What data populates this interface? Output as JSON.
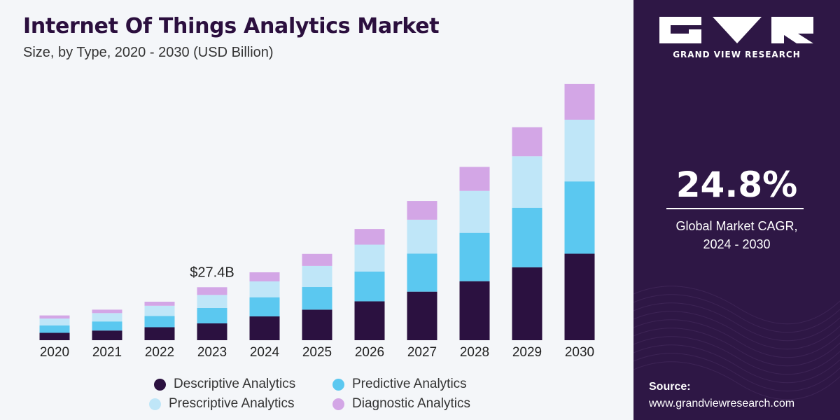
{
  "header": {
    "title": "Internet Of Things Analytics Market",
    "subtitle": "Size, by Type, 2020 - 2030 (USD Billion)"
  },
  "chart_data": {
    "type": "bar",
    "stacked": true,
    "categories": [
      "2020",
      "2021",
      "2022",
      "2023",
      "2024",
      "2025",
      "2026",
      "2027",
      "2028",
      "2029",
      "2030"
    ],
    "series": [
      {
        "name": "Descriptive Analytics",
        "color": "#2b1140",
        "values": [
          3.8,
          5.0,
          6.7,
          8.7,
          12.3,
          15.8,
          20.1,
          25.1,
          30.5,
          37.7,
          44.7
        ]
      },
      {
        "name": "Predictive Analytics",
        "color": "#5bc8f0",
        "values": [
          3.8,
          4.7,
          5.8,
          8.0,
          9.9,
          11.7,
          15.4,
          19.7,
          25.0,
          30.8,
          37.4
        ]
      },
      {
        "name": "Prescriptive Analytics",
        "color": "#bfe6f8",
        "values": [
          3.6,
          4.3,
          5.3,
          6.7,
          8.2,
          10.9,
          13.9,
          17.5,
          21.7,
          26.6,
          31.9
        ]
      },
      {
        "name": "Diagnostic Analytics",
        "color": "#d3a6e6",
        "values": [
          1.6,
          1.8,
          2.1,
          4.0,
          4.7,
          6.2,
          8.1,
          9.7,
          12.4,
          15.0,
          18.5
        ]
      }
    ],
    "annotations": [
      {
        "category": "2023",
        "text": "$27.4B"
      }
    ],
    "legend_position": "bottom",
    "grid": false,
    "ylim": [
      0,
      135
    ]
  },
  "sidebar": {
    "brand": "GRAND VIEW RESEARCH",
    "cagr_value": "24.8%",
    "cagr_label_line1": "Global Market CAGR,",
    "cagr_label_line2": "2024 - 2030",
    "source_label": "Source:",
    "source_url": "www.grandviewresearch.com"
  }
}
